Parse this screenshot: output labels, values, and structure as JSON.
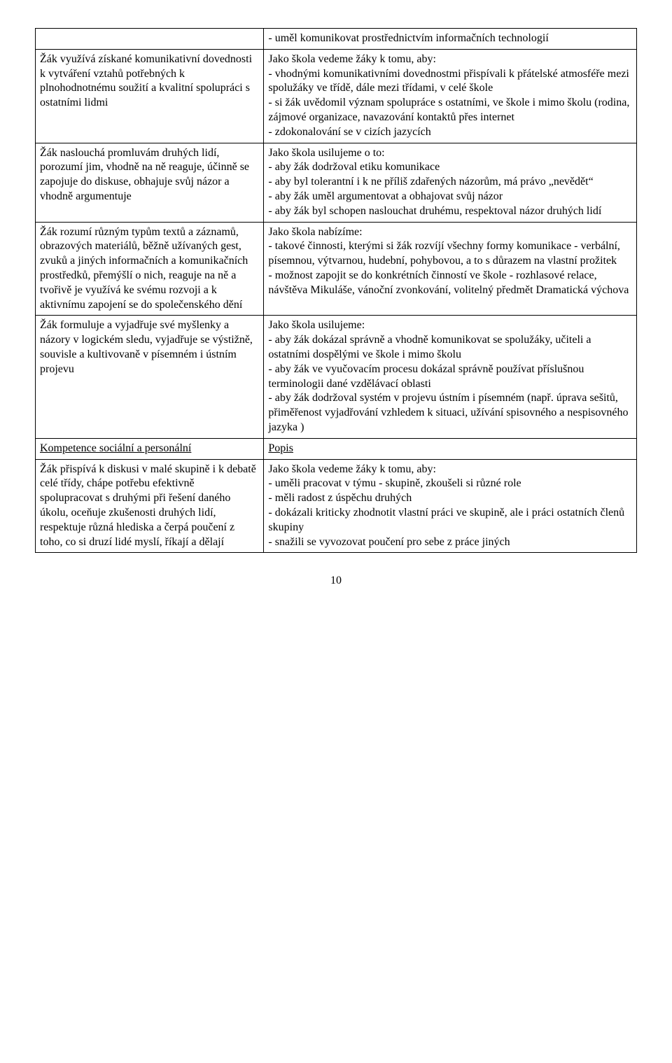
{
  "row0": {
    "left": "",
    "right": "- uměl komunikovat prostřednictvím informačních technologií"
  },
  "row1": {
    "left": "Žák využívá získané komunikativní dovednosti k vytváření vztahů potřebných k plnohodnotnému soužití a kvalitní spolupráci s ostatními lidmi",
    "right": "Jako škola vedeme žáky k tomu, aby:\n- vhodnými komunikativními dovednostmi přispívali k přátelské atmosféře mezi spolužáky ve třídě, dále mezi třídami, v celé škole\n- si žák uvědomil význam spolupráce s ostatními, ve škole i mimo školu (rodina, zájmové organizace, navazování kontaktů přes internet\n- zdokonalování se v cizích jazycích"
  },
  "row2": {
    "left": "Žák naslouchá promluvám druhých lidí, porozumí jim, vhodně na ně reaguje, účinně se zapojuje do diskuse, obhajuje svůj názor a vhodně argumentuje",
    "right": "Jako škola usilujeme o to:\n- aby žák dodržoval etiku komunikace\n- aby byl tolerantní i k ne příliš zdařených názorům, má právo „nevědět“\n- aby žák uměl argumentovat a obhajovat svůj názor\n- aby žák byl schopen naslouchat druhému, respektoval názor druhých lidí"
  },
  "row3": {
    "left": "Žák rozumí různým typům textů a záznamů, obrazových materiálů, běžně užívaných gest, zvuků a jiných informačních a komunikačních prostředků, přemýšlí o nich, reaguje na ně a tvořivě je využívá ke svému rozvoji a k aktivnímu zapojení se do společenského dění",
    "right": "Jako škola nabízíme:\n- takové činnosti, kterými si žák rozvíjí všechny formy komunikace - verbální, písemnou, výtvarnou, hudební, pohybovou, a to s důrazem na vlastní prožitek\n- možnost zapojit se do konkrétních činností ve škole - rozhlasové relace, návštěva Mikuláše, vánoční zvonkování, volitelný předmět Dramatická výchova"
  },
  "row4": {
    "left": "Žák formuluje a vyjadřuje své myšlenky a názory v logickém sledu, vyjadřuje se výstižně, souvisle a kultivovaně v písemném i ústním projevu",
    "right": "Jako škola usilujeme:\n- aby žák dokázal správně a vhodně komunikovat se spolužáky, učiteli a ostatními dospělými ve škole i mimo školu\n- aby žák ve vyučovacím procesu dokázal správně používat příslušnou terminologii dané vzdělávací oblasti\n- aby žák dodržoval systém v projevu ústním i písemném (např. úprava sešitů, přiměřenost vyjadřování vzhledem k situaci, užívání spisovného a nespisovného jazyka )"
  },
  "headingRow": {
    "left": "Kompetence sociální a personální",
    "right": "Popis"
  },
  "row5": {
    "left": "Žák přispívá k diskusi v malé skupině i k debatě celé třídy, chápe potřebu efektivně spolupracovat s druhými při řešení daného úkolu, oceňuje zkušenosti druhých lidí, respektuje různá hlediska a čerpá poučení z toho, co si druzí lidé myslí, říkají a dělají",
    "right": "Jako škola vedeme žáky k tomu, aby:\n- uměli pracovat v týmu - skupině, zkoušeli si různé role\n- měli radost z úspěchu druhých\n- dokázali kriticky zhodnotit vlastní práci ve skupině, ale i práci ostatních členů skupiny\n- snažili se vyvozovat poučení pro sebe z práce jiných"
  },
  "pageNumber": "10"
}
